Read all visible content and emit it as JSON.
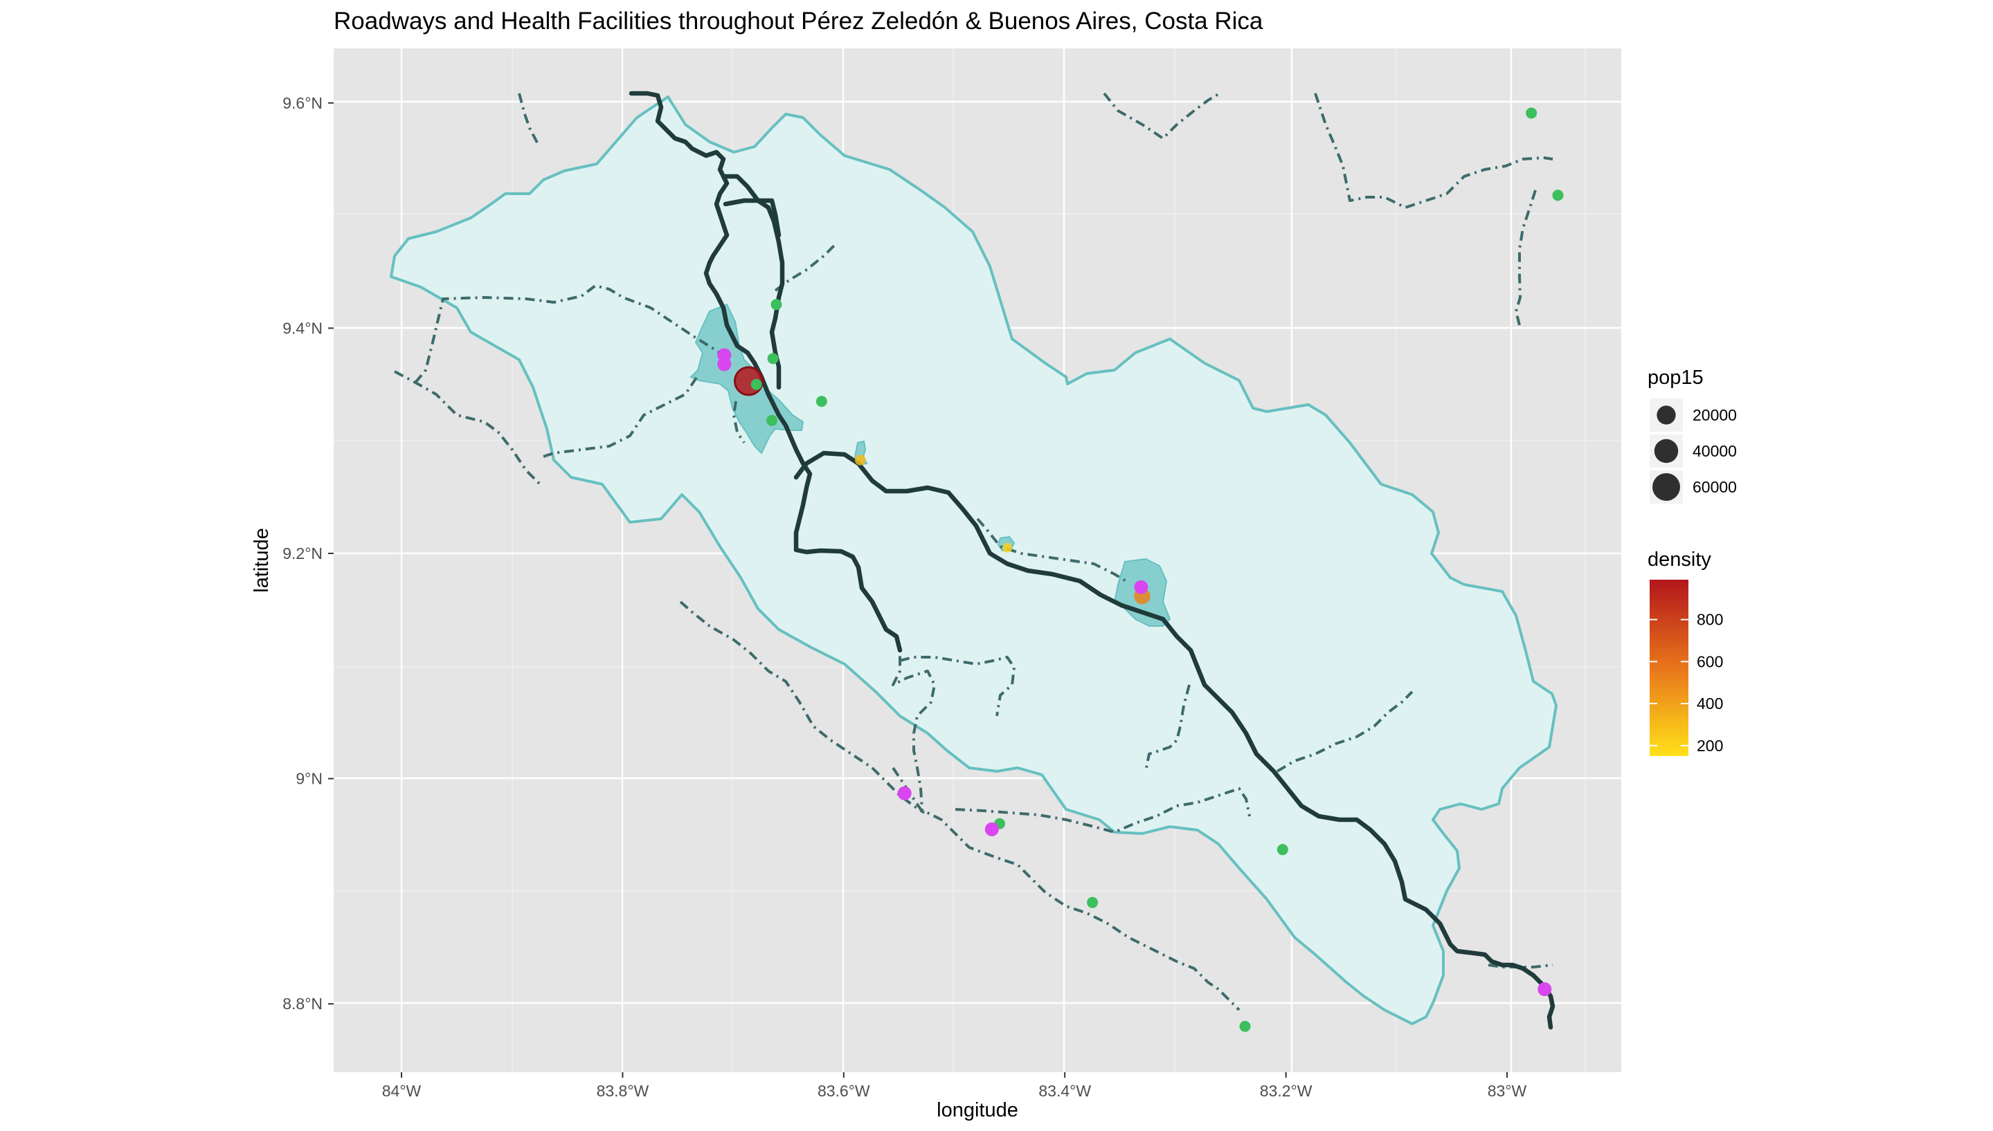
{
  "title": "Roadways and Health Facilities throughout Pérez Zeledón & Buenos Aires, Costa Rica",
  "x_axis": {
    "label": "longitude",
    "range": [
      -84.06,
      -82.95
    ],
    "ticks": [
      {
        "value": -84.0,
        "label": "84°W"
      },
      {
        "value": -83.8,
        "label": "83.8°W"
      },
      {
        "value": -83.6,
        "label": "83.6°W"
      },
      {
        "value": -83.4,
        "label": "83.4°W"
      },
      {
        "value": -83.2,
        "label": "83.2°W"
      },
      {
        "value": -83.0,
        "label": "83°W"
      }
    ]
  },
  "y_axis": {
    "label": "latitude",
    "range": [
      8.735,
      9.65
    ],
    "ticks": [
      {
        "value": 8.8,
        "label": "8.8°N"
      },
      {
        "value": 9.0,
        "label": "9°N"
      },
      {
        "value": 9.2,
        "label": "9.2°N"
      },
      {
        "value": 9.4,
        "label": "9.4°N"
      },
      {
        "value": 9.6,
        "label": "9.6°N"
      }
    ]
  },
  "colors": {
    "panel": "#e5e5e5",
    "region_fill": "#dff2f2",
    "region_border": "#67c0c0",
    "urban_fill": "#4db8b8",
    "main_road": "#203b3b",
    "secondary_road": "#3e6b6b",
    "facility_green": "#3cbf5c",
    "facility_magenta": "#d946ef"
  },
  "legend": {
    "size": {
      "title": "pop15",
      "entries": [
        {
          "value": 20000,
          "label": "20000"
        },
        {
          "value": 40000,
          "label": "40000"
        },
        {
          "value": 60000,
          "label": "60000"
        }
      ]
    },
    "color": {
      "title": "density",
      "range": [
        150,
        990
      ],
      "low_color": "#ffe11a",
      "high_color": "#b3161c",
      "ticks": [
        {
          "value": 200,
          "label": "200"
        },
        {
          "value": 400,
          "label": "400"
        },
        {
          "value": 600,
          "label": "600"
        },
        {
          "value": 800,
          "label": "800"
        }
      ]
    }
  },
  "population_points": [
    {
      "lon": -83.686,
      "lat": 9.353,
      "pop15": 60000,
      "density": 980
    },
    {
      "lon": -83.33,
      "lat": 9.162,
      "pop15": 12000,
      "density": 520
    },
    {
      "lon": -83.585,
      "lat": 9.283,
      "pop15": 2000,
      "density": 300
    },
    {
      "lon": -83.452,
      "lat": 9.205,
      "pop15": 1000,
      "density": 220
    }
  ],
  "facilities_green": [
    {
      "lon": -83.661,
      "lat": 9.421
    },
    {
      "lon": -83.664,
      "lat": 9.373
    },
    {
      "lon": -83.679,
      "lat": 9.35
    },
    {
      "lon": -83.62,
      "lat": 9.335
    },
    {
      "lon": -83.665,
      "lat": 9.318
    },
    {
      "lon": -82.978,
      "lat": 9.591
    },
    {
      "lon": -82.954,
      "lat": 9.518
    },
    {
      "lon": -83.459,
      "lat": 8.96
    },
    {
      "lon": -83.203,
      "lat": 8.937
    },
    {
      "lon": -83.375,
      "lat": 8.89
    },
    {
      "lon": -83.237,
      "lat": 8.78
    }
  ],
  "facilities_magenta": [
    {
      "lon": -83.708,
      "lat": 9.376
    },
    {
      "lon": -83.708,
      "lat": 9.368
    },
    {
      "lon": -83.331,
      "lat": 9.17
    },
    {
      "lon": -83.545,
      "lat": 8.987
    },
    {
      "lon": -83.466,
      "lat": 8.955
    },
    {
      "lon": -82.966,
      "lat": 8.813
    }
  ]
}
